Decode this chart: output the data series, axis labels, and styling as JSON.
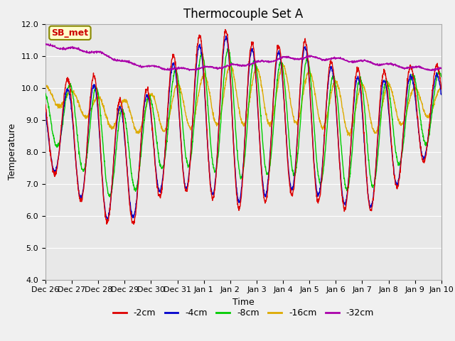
{
  "title": "Thermocouple Set A",
  "xlabel": "Time",
  "ylabel": "Temperature",
  "ylim": [
    4.0,
    12.0
  ],
  "yticks": [
    4.0,
    5.0,
    6.0,
    7.0,
    8.0,
    9.0,
    10.0,
    11.0,
    12.0
  ],
  "xtick_labels": [
    "Dec 26",
    "Dec 27",
    "Dec 28",
    "Dec 29",
    "Dec 30",
    "Dec 31",
    "Jan 1",
    "Jan 2",
    "Jan 3",
    "Jan 4",
    "Jan 5",
    "Jan 6",
    "Jan 7",
    "Jan 8",
    "Jan 9",
    "Jan 10"
  ],
  "colors": {
    "-2cm": "#dd0000",
    "-4cm": "#0000cc",
    "-8cm": "#00cc00",
    "-16cm": "#ddaa00",
    "-32cm": "#aa00aa"
  },
  "legend_labels": [
    "-2cm",
    "-4cm",
    "-8cm",
    "-16cm",
    "-32cm"
  ],
  "annotation_text": "SB_met",
  "annotation_color": "#cc0000",
  "annotation_bg": "#ffffcc",
  "annotation_edge": "#888800",
  "fig_bg": "#f0f0f0",
  "plot_bg": "#e8e8e8",
  "grid_color": "#ffffff",
  "title_fontsize": 12,
  "axis_fontsize": 9,
  "tick_fontsize": 8,
  "legend_fontsize": 9,
  "line_width": 1.0,
  "n_days": 15
}
